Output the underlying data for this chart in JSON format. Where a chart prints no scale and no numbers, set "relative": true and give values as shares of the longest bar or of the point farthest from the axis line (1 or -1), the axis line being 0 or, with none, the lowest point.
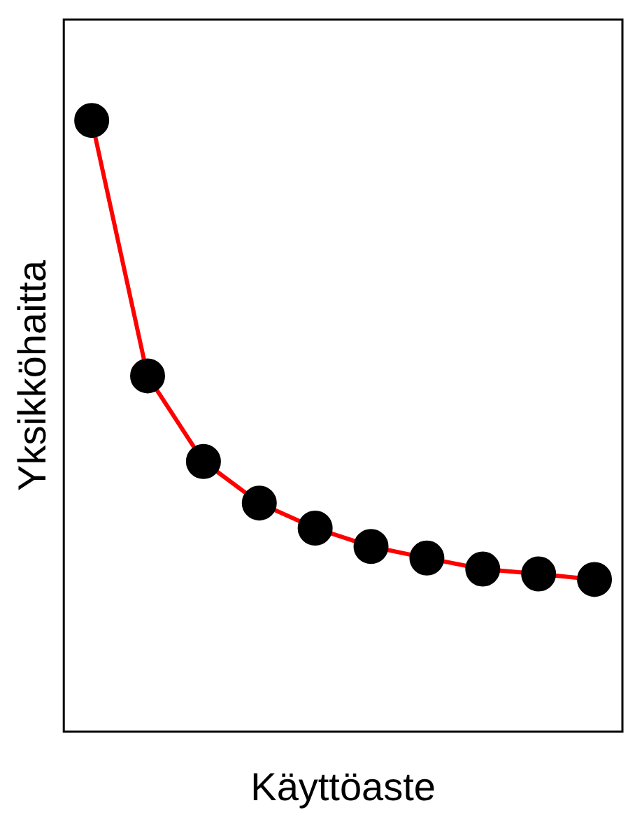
{
  "chart_data": {
    "type": "line",
    "xlabel": "Käyttöaste",
    "ylabel": "Yksikköhaitta",
    "relative": true,
    "marker": "circle",
    "line_style": "solid",
    "grid": false,
    "legend": false,
    "categories": [
      null,
      null,
      null,
      null,
      null,
      null,
      null,
      null,
      null,
      null
    ],
    "series": [
      {
        "color": "#ff0000",
        "values": [
          1,
          0.582,
          0.442,
          0.374,
          0.333,
          0.303,
          0.284,
          0.266,
          0.258,
          0.249
        ]
      }
    ]
  }
}
